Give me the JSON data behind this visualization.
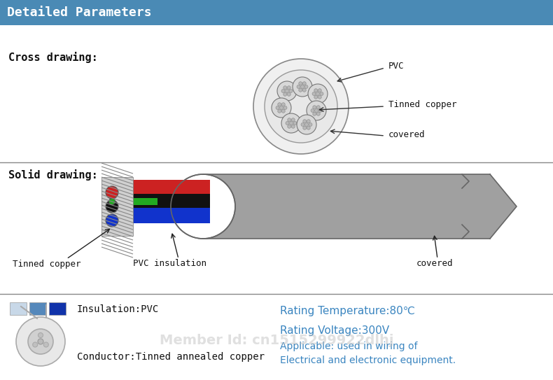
{
  "bg_color": "#ffffff",
  "header_color": "#4a8ab5",
  "header_text": "Detailed Parameters",
  "header_text_color": "#ffffff",
  "cross_drawing_label": "Cross drawing:",
  "solid_drawing_label": "Solid drawing:",
  "pvc_label": "PVC",
  "tinned_copper_label": "Tinned copper",
  "covered_label": "covered",
  "tinned_copper_bottom": "Tinned copper",
  "pvc_insulation_bottom": "PVC insulation",
  "covered_bottom": "covered",
  "insulation_label": "Insulation:PVC",
  "conductor_label": "Conductor:Tinned annealed copper",
  "rating_temp": "Rating Temperature:80℃",
  "rating_voltage": "Rating Voltage:300V",
  "applicable_text": "Applicable: used in wiring of",
  "electrical_text": "Electrical and electronic equipment.",
  "watermark": "Member Id: cn1515299922dlhj",
  "label_color": "#111111",
  "blue_label_color": "#3a85c0",
  "wire_red": "#cc2222",
  "wire_blue": "#1133cc",
  "wire_black": "#111111",
  "wire_green": "#22aa22",
  "cover_gray": "#a0a0a0",
  "swatch1": "#c8d8e8",
  "swatch2": "#5588bb",
  "swatch3": "#1133aa"
}
